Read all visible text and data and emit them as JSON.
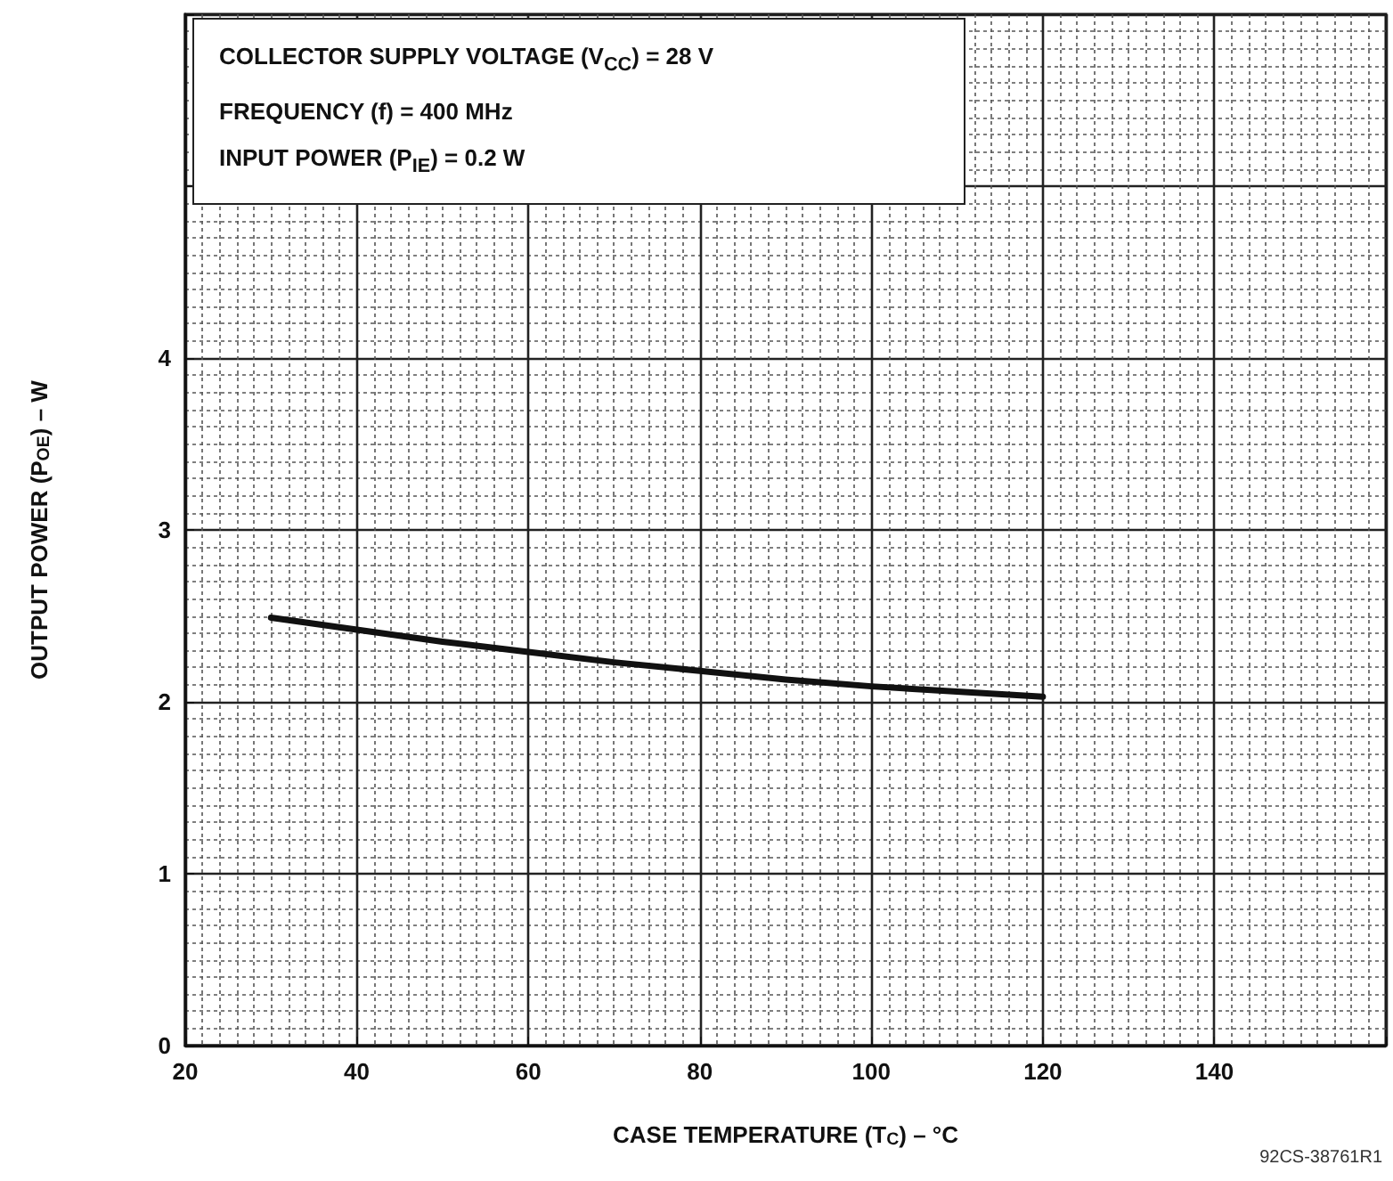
{
  "chart_data": {
    "type": "line",
    "xlabel": "CASE TEMPERATURE (T$_{C}$) – °C",
    "ylabel": "OUTPUT POWER (P$_{OE}$) – W",
    "annotations": [
      "COLLECTOR SUPPLY VOLTAGE (V$_{CC}$) = 28 V",
      "FREQUENCY (f) = 400 MHz",
      "INPUT POWER (P$_{IE}$) = 0.2 W",
      "92CS-38761R1"
    ],
    "x": [
      30,
      40,
      50,
      60,
      70,
      80,
      90,
      100,
      110,
      120
    ],
    "series": [
      {
        "color": "#111111",
        "values": [
          2.49,
          2.42,
          2.35,
          2.29,
          2.23,
          2.18,
          2.13,
          2.09,
          2.06,
          2.03
        ]
      }
    ],
    "xlim": [
      20,
      160
    ],
    "xticks": [
      20,
      40,
      60,
      80,
      100,
      120,
      140
    ],
    "ylim": [
      0,
      6
    ],
    "yticks": [
      0,
      1,
      2,
      3,
      4
    ],
    "grid": true
  }
}
